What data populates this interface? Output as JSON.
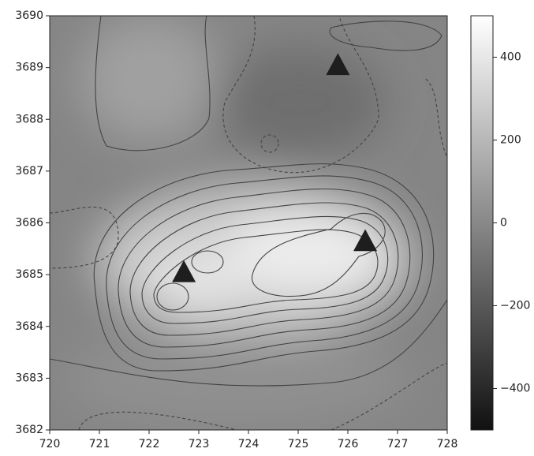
{
  "chart_data": {
    "type": "scatter",
    "series": [
      {
        "color": "#1e1e1e",
        "marker": "triangle",
        "x": [
          725.8,
          722.7,
          726.35
        ],
        "values": [
          3689.05,
          3685.05,
          3685.65
        ]
      }
    ],
    "xlim": [
      720,
      728
    ],
    "xticks": [
      720,
      721,
      722,
      723,
      724,
      725,
      726,
      727,
      728
    ],
    "ylim": [
      3682,
      3690
    ],
    "yticks": [
      3682,
      3683,
      3684,
      3685,
      3686,
      3687,
      3688,
      3689,
      3690
    ],
    "colorbar": {
      "lim": [
        -500,
        500
      ],
      "ticks": [
        {
          "value": -400,
          "label": "−400"
        },
        {
          "value": -200,
          "label": "−200"
        },
        0,
        200,
        400
      ]
    }
  }
}
